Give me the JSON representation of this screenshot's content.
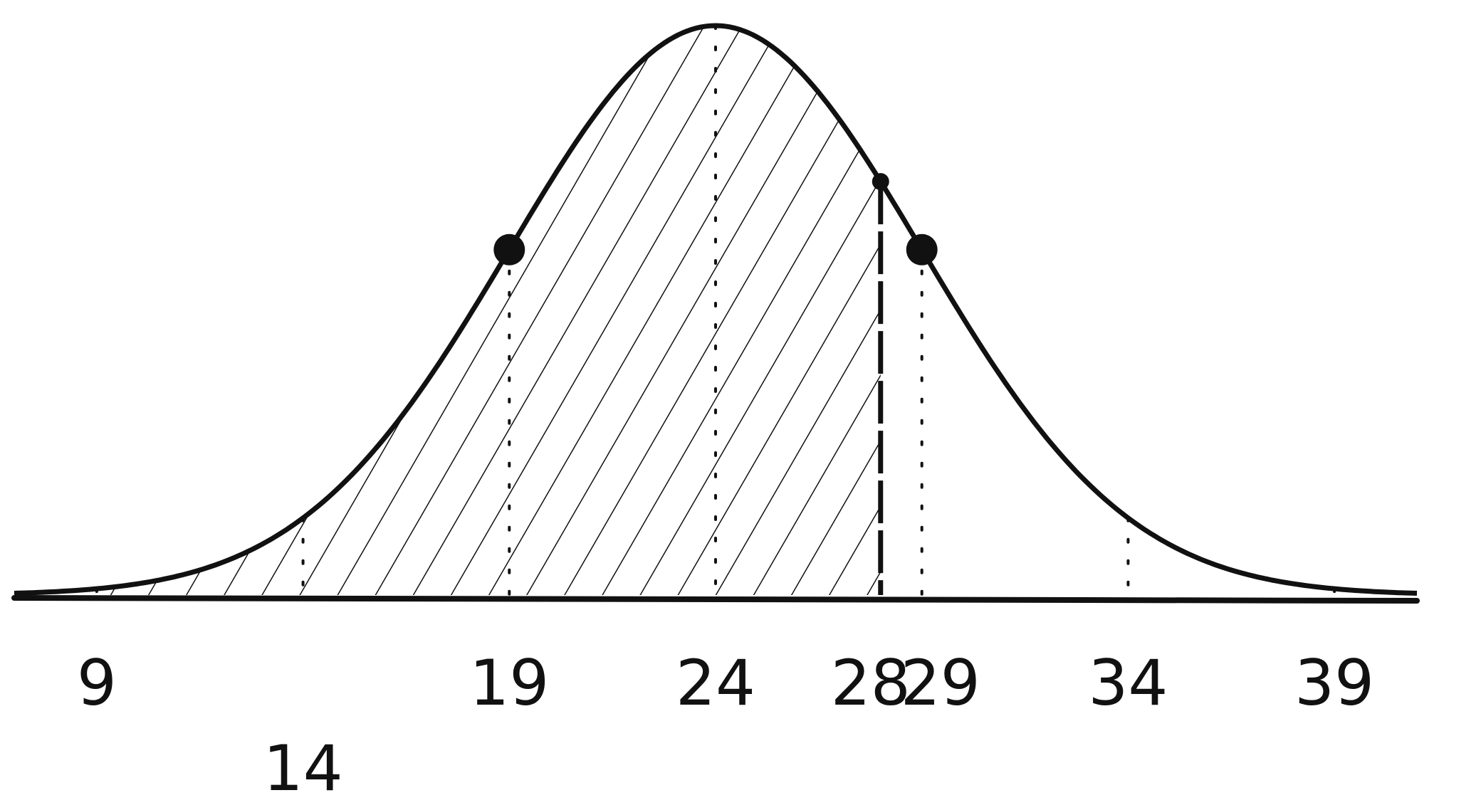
{
  "chart_data": {
    "type": "area",
    "title": "",
    "xlabel": "",
    "ylabel": "",
    "distribution": "normal",
    "mean": 24,
    "sd": 5,
    "x_ticks": [
      {
        "value": 9,
        "label": "9",
        "row": 1
      },
      {
        "value": 14,
        "label": "14",
        "row": 2
      },
      {
        "value": 19,
        "label": "19",
        "row": 1
      },
      {
        "value": 24,
        "label": "24",
        "row": 1
      },
      {
        "value": 28,
        "label": "28",
        "row": 1
      },
      {
        "value": 29,
        "label": "29",
        "row": 1
      },
      {
        "value": 34,
        "label": "34",
        "row": 1
      },
      {
        "value": 39,
        "label": "39",
        "row": 1
      }
    ],
    "xlim": [
      7,
      41
    ],
    "shaded_region": {
      "from": 9,
      "to": 28,
      "pattern": "diagonal-hatch"
    },
    "dashed_lines": [
      9,
      14,
      19,
      24,
      28,
      29,
      34,
      39
    ],
    "solid_line_at": 28,
    "marked_points": [
      19,
      28,
      29
    ],
    "colors": {
      "ink": "#111111",
      "background": "#ffffff"
    }
  }
}
